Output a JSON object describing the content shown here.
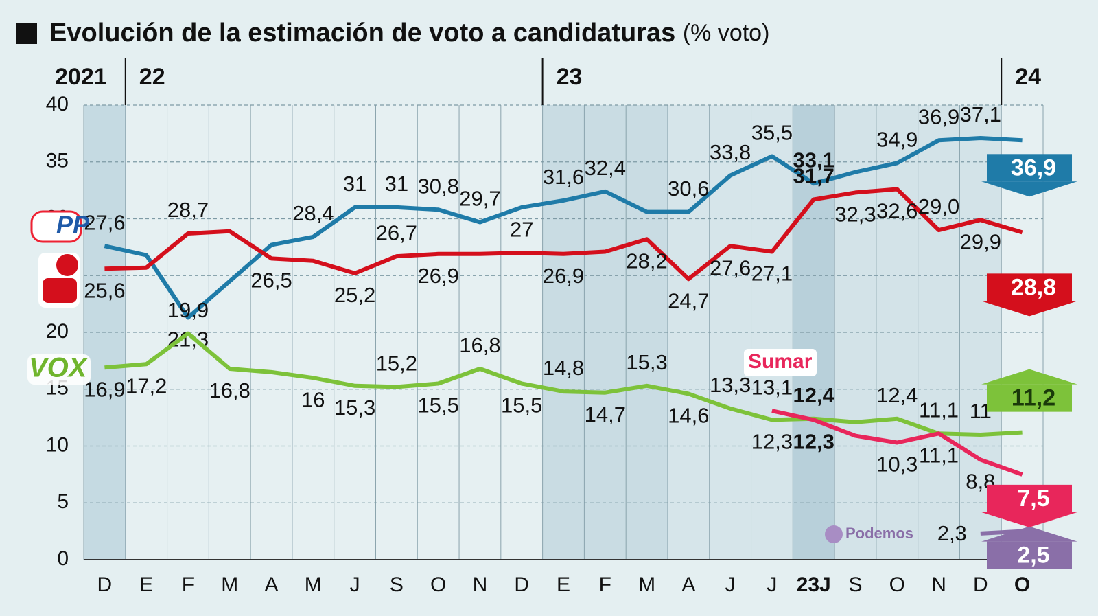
{
  "chart_data": {
    "type": "line",
    "title": "Evolución de la estimación de voto a candidaturas",
    "title_unit": "(% voto)",
    "categories": [
      "D",
      "E",
      "F",
      "M",
      "A",
      "M",
      "J",
      "S",
      "O",
      "N",
      "D",
      "E",
      "F",
      "M",
      "A",
      "J",
      "J",
      "23J",
      "S",
      "O",
      "N",
      "D",
      "O"
    ],
    "year_labels": [
      "2021",
      "22",
      "23",
      "24"
    ],
    "year_start_index": [
      0,
      1,
      11,
      22
    ],
    "ylim": [
      0,
      40
    ],
    "yticks": [
      0,
      5,
      10,
      15,
      20,
      25,
      30,
      35,
      40
    ],
    "grid": true,
    "series": [
      {
        "name": "PP",
        "color": "#1f7ba8",
        "values": [
          27.6,
          26.8,
          21.3,
          24.5,
          27.7,
          28.4,
          31,
          31,
          30.8,
          29.7,
          31,
          31.6,
          32.4,
          30.6,
          30.6,
          33.8,
          35.5,
          33.1,
          34.1,
          34.9,
          36.9,
          37.1,
          36.9
        ],
        "value_labels": [
          "27,6",
          null,
          "21,3",
          null,
          null,
          "28,4",
          "31",
          "31",
          "30,8",
          "29,7",
          null,
          "31,6",
          "32,4",
          null,
          "30,6",
          "33,8",
          "35,5",
          "33,1",
          null,
          "34,9",
          "36,9",
          "37,1",
          "36,9"
        ]
      },
      {
        "color": "#d40f1c",
        "values": [
          25.6,
          25.7,
          28.7,
          28.9,
          26.5,
          26.3,
          25.2,
          26.7,
          26.9,
          26.9,
          27,
          26.9,
          27.1,
          28.2,
          24.7,
          27.6,
          27.1,
          31.7,
          32.3,
          32.6,
          29.0,
          29.9,
          28.8
        ],
        "value_labels": [
          "25,6",
          null,
          "28,7",
          null,
          "26,5",
          null,
          "25,2",
          "26,7",
          "26,9",
          null,
          "27",
          "26,9",
          null,
          "28,2",
          "24,7",
          "27,6",
          "27,1",
          "31,7",
          "32,3",
          "32,6",
          "29,0",
          "29,9",
          "28,8"
        ]
      },
      {
        "name": "VOX",
        "color": "#7dc23a",
        "values": [
          16.9,
          17.2,
          19.9,
          16.8,
          16.5,
          16,
          15.3,
          15.2,
          15.5,
          16.8,
          15.5,
          14.8,
          14.7,
          15.3,
          14.6,
          13.3,
          12.3,
          12.4,
          12.1,
          12.4,
          11.1,
          11,
          11.2
        ],
        "value_labels": [
          "16,9",
          "17,2",
          "19,9",
          "16,8",
          null,
          "16",
          "15,3",
          "15,2",
          "15,5",
          "16,8",
          "15,5",
          "14,8",
          "14,7",
          "15,3",
          "14,6",
          "13,3",
          "12,3",
          "12,4",
          null,
          "12,4",
          "11,1",
          "11",
          "11,2"
        ]
      },
      {
        "name": "Sumar",
        "color": "#e8265b",
        "values": [
          null,
          null,
          null,
          null,
          null,
          null,
          null,
          null,
          null,
          null,
          null,
          null,
          null,
          null,
          null,
          null,
          13.1,
          12.3,
          10.9,
          10.3,
          11.1,
          8.8,
          7.5
        ],
        "value_labels": [
          null,
          null,
          null,
          null,
          null,
          null,
          null,
          null,
          null,
          null,
          null,
          null,
          null,
          null,
          null,
          null,
          "13,1",
          "12,3",
          null,
          "10,3",
          "11,1",
          "8,8",
          "7,5"
        ]
      },
      {
        "name": "Podemos",
        "color": "#8a6fa8",
        "values": [
          null,
          null,
          null,
          null,
          null,
          null,
          null,
          null,
          null,
          null,
          null,
          null,
          null,
          null,
          null,
          null,
          null,
          null,
          null,
          null,
          null,
          2.3,
          2.5
        ],
        "value_labels": [
          null,
          null,
          null,
          null,
          null,
          null,
          null,
          null,
          null,
          null,
          null,
          null,
          null,
          null,
          null,
          null,
          null,
          null,
          null,
          null,
          null,
          "2,3",
          "2,5"
        ]
      }
    ]
  }
}
